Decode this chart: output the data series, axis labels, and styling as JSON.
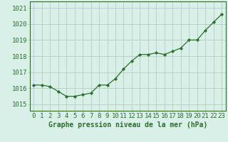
{
  "x": [
    0,
    1,
    2,
    3,
    4,
    5,
    6,
    7,
    8,
    9,
    10,
    11,
    12,
    13,
    14,
    15,
    16,
    17,
    18,
    19,
    20,
    21,
    22,
    23
  ],
  "y": [
    1016.2,
    1016.2,
    1016.1,
    1015.8,
    1015.5,
    1015.5,
    1015.6,
    1015.7,
    1016.2,
    1016.2,
    1016.6,
    1017.2,
    1017.7,
    1018.1,
    1018.1,
    1018.2,
    1018.1,
    1018.3,
    1018.5,
    1019.0,
    1019.0,
    1019.6,
    1020.1,
    1020.6
  ],
  "line_color": "#2d6e2d",
  "marker_color": "#2d6e2d",
  "bg_color": "#d8f0e8",
  "plot_bg_color": "#d8f0e8",
  "grid_color": "#aac8b8",
  "axis_label_color": "#2d6e2d",
  "xlabel_text": "Graphe pression niveau de la mer (hPa)",
  "ylim_min": 1014.6,
  "ylim_max": 1021.4,
  "yticks": [
    1015,
    1016,
    1017,
    1018,
    1019,
    1020,
    1021
  ],
  "xticks": [
    0,
    1,
    2,
    3,
    4,
    5,
    6,
    7,
    8,
    9,
    10,
    11,
    12,
    13,
    14,
    15,
    16,
    17,
    18,
    19,
    20,
    21,
    22,
    23
  ],
  "tick_fontsize": 6.5,
  "xlabel_fontsize": 7.0
}
